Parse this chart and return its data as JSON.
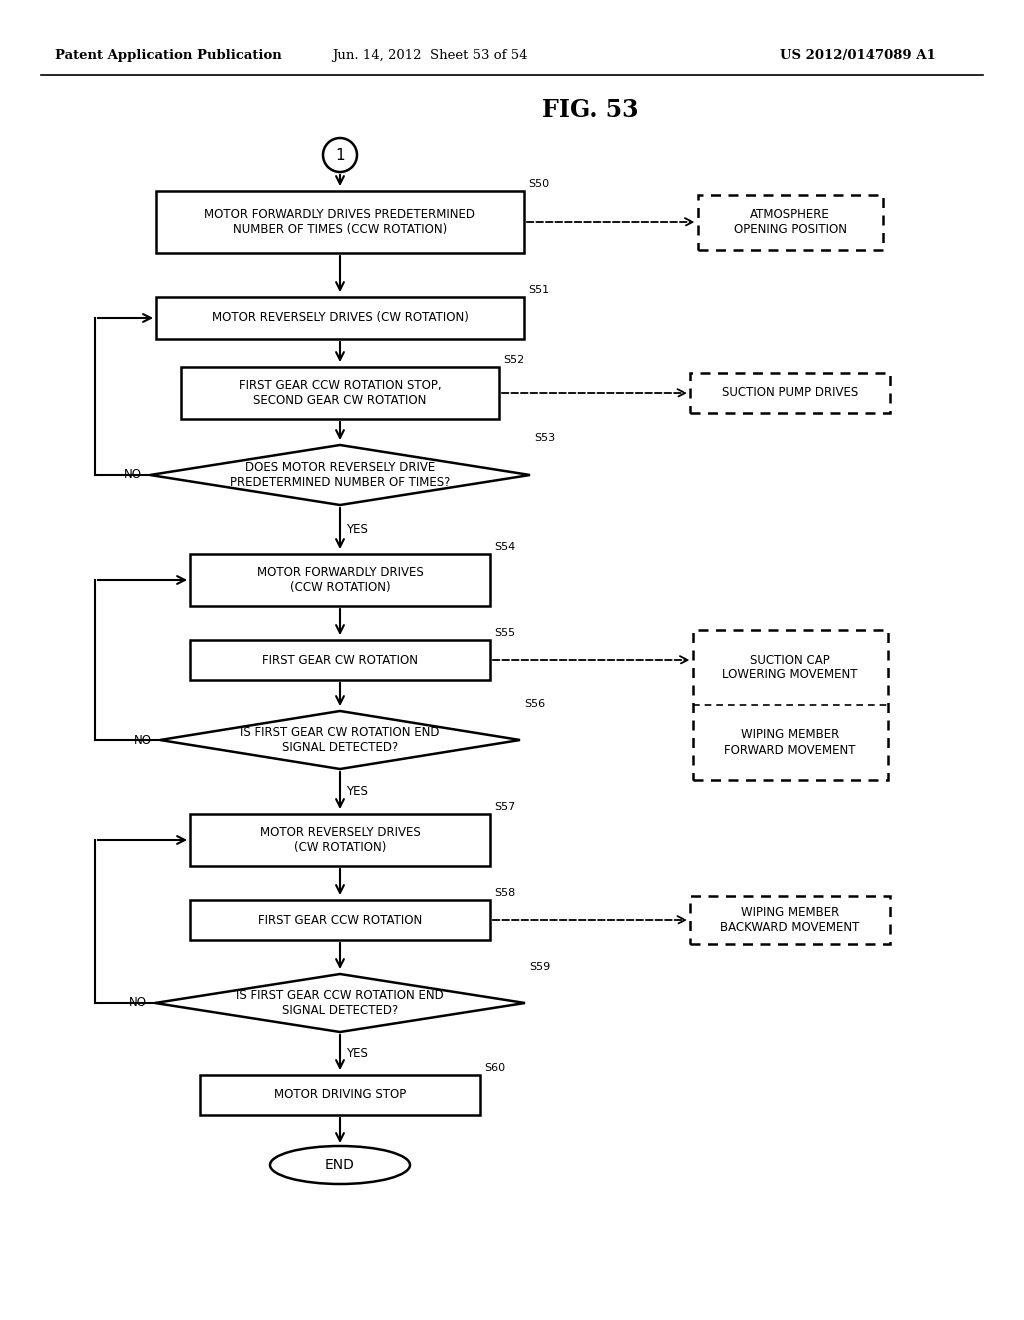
{
  "title": "FIG. 53",
  "header_left": "Patent Application Publication",
  "header_center": "Jun. 14, 2012  Sheet 53 of 54",
  "header_right": "US 2012/0147089 A1",
  "bg_color": "#ffffff"
}
